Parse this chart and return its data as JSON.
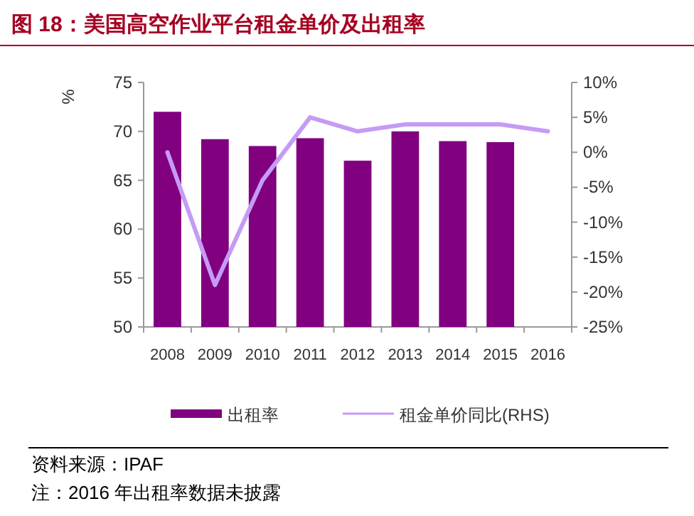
{
  "chart_data": {
    "type": "bar",
    "title": "图 18：美国高空作业平台租金单价及出租率",
    "categories": [
      "2008",
      "2009",
      "2010",
      "2011",
      "2012",
      "2013",
      "2014",
      "2015",
      "2016"
    ],
    "series": [
      {
        "name": "出租率",
        "type": "bar",
        "color": "#800080",
        "values": [
          72,
          69.2,
          68.5,
          69.3,
          67,
          70,
          69,
          68.9,
          null
        ]
      },
      {
        "name": "租金单价同比(RHS)",
        "type": "line",
        "axis": "y2",
        "color": "#c59bf5",
        "values": [
          0,
          -19,
          -4,
          5,
          3,
          4,
          4,
          4,
          3
        ]
      }
    ],
    "ylabel": "%",
    "ylim": [
      50,
      75
    ],
    "yticks": [
      50,
      55,
      60,
      65,
      70,
      75
    ],
    "y2lim": [
      -25,
      10
    ],
    "y2ticks": [
      {
        "value": -25,
        "label": "-25%"
      },
      {
        "value": -20,
        "label": "-20%"
      },
      {
        "value": -15,
        "label": "-15%"
      },
      {
        "value": -10,
        "label": "-10%"
      },
      {
        "value": -5,
        "label": "-5%"
      },
      {
        "value": 0,
        "label": "0%"
      },
      {
        "value": 5,
        "label": "5%"
      },
      {
        "value": 10,
        "label": "10%"
      }
    ],
    "legend": "bottom",
    "grid": false,
    "annotations": [
      "资料来源：IPAF",
      "注：2016 年出租率数据未披露"
    ]
  }
}
